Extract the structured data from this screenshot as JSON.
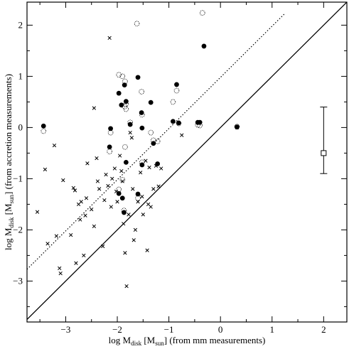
{
  "chart_data": {
    "type": "scatter",
    "xlabel": {
      "main": "log M",
      "sub": "disk",
      "bracket": " [M",
      "sub2": "sun",
      "tail": "] (from mm measurements)"
    },
    "ylabel": {
      "main": "log M",
      "sub": "disk",
      "bracket": " [M",
      "sub2": "sun",
      "tail": "] (from accretion measurements)"
    },
    "xlim": [
      -3.75,
      2.45
    ],
    "ylim": [
      -3.8,
      2.45
    ],
    "x_ticks": [
      -3,
      -2,
      -1,
      0,
      1,
      2
    ],
    "y_ticks": [
      -3,
      -2,
      -1,
      0,
      1,
      2
    ],
    "grid": false,
    "lines": [
      {
        "style": "solid",
        "x": [
          -3.75,
          2.45
        ],
        "y": [
          -3.75,
          2.45
        ]
      },
      {
        "style": "dotted",
        "x": [
          -3.75,
          1.25
        ],
        "y": [
          -2.77,
          2.23
        ]
      }
    ],
    "series": [
      {
        "marker": "filled-circle",
        "points": [
          [
            -3.43,
            0.03
          ],
          [
            -2.13,
            -0.02
          ],
          [
            -2.15,
            -0.38
          ],
          [
            -1.97,
            0.67
          ],
          [
            -1.92,
            0.44
          ],
          [
            -1.86,
            0.83
          ],
          [
            -1.83,
            0.51
          ],
          [
            -1.75,
            0.06
          ],
          [
            -1.6,
            0.98
          ],
          [
            -1.53,
            0.29
          ],
          [
            -1.52,
            -0.01
          ],
          [
            -1.35,
            0.49
          ],
          [
            -1.3,
            -0.31
          ],
          [
            -1.22,
            -0.71
          ],
          [
            -0.92,
            0.12
          ],
          [
            -0.85,
            0.84
          ],
          [
            -0.81,
            0.09
          ],
          [
            -0.44,
            0.1
          ],
          [
            -0.4,
            0.1
          ],
          [
            -0.32,
            1.59
          ],
          [
            0.32,
            0.01
          ],
          [
            -1.97,
            -1.29
          ],
          [
            -1.9,
            -1.38
          ],
          [
            -1.87,
            -1.66
          ],
          [
            -1.6,
            -1.3
          ],
          [
            -1.52,
            -0.73
          ],
          [
            -1.83,
            -0.68
          ]
        ]
      },
      {
        "marker": "dotted-circle",
        "points": [
          [
            -3.43,
            -0.07
          ],
          [
            -2.13,
            -0.1
          ],
          [
            -2.15,
            -0.47
          ],
          [
            -1.97,
            1.03
          ],
          [
            -1.9,
            1.0
          ],
          [
            -1.86,
            0.41
          ],
          [
            -1.83,
            0.46
          ],
          [
            -1.75,
            0.1
          ],
          [
            -1.62,
            2.03
          ],
          [
            -1.53,
            0.7
          ],
          [
            -1.52,
            0.25
          ],
          [
            -1.35,
            -0.1
          ],
          [
            -1.3,
            -0.25
          ],
          [
            -1.22,
            -0.27
          ],
          [
            -0.92,
            0.5
          ],
          [
            -0.85,
            0.72
          ],
          [
            -0.81,
            0.08
          ],
          [
            -0.44,
            0.05
          ],
          [
            -0.4,
            0.04
          ],
          [
            -0.35,
            2.24
          ],
          [
            0.32,
            0.02
          ],
          [
            -1.97,
            -1.21
          ],
          [
            -1.9,
            -1.02
          ],
          [
            -1.87,
            -1.62
          ],
          [
            -1.6,
            -1.38
          ],
          [
            -1.52,
            -0.68
          ],
          [
            -1.85,
            -0.38
          ],
          [
            -1.83,
            0.36
          ],
          [
            -1.85,
            0.9
          ]
        ]
      },
      {
        "marker": "cross",
        "points": [
          [
            -3.55,
            -1.65
          ],
          [
            -3.4,
            -0.82
          ],
          [
            -3.35,
            -2.27
          ],
          [
            -3.22,
            -0.35
          ],
          [
            -3.18,
            -2.12
          ],
          [
            -3.12,
            -2.75
          ],
          [
            -3.1,
            -2.85
          ],
          [
            -3.05,
            -1.03
          ],
          [
            -2.9,
            -2.1
          ],
          [
            -2.85,
            -1.18
          ],
          [
            -2.82,
            -1.23
          ],
          [
            -2.8,
            -2.65
          ],
          [
            -2.75,
            -1.5
          ],
          [
            -2.72,
            -1.8
          ],
          [
            -2.7,
            -1.45
          ],
          [
            -2.65,
            -2.5
          ],
          [
            -2.62,
            -1.72
          ],
          [
            -2.6,
            -1.38
          ],
          [
            -2.58,
            -0.7
          ],
          [
            -2.5,
            -1.6
          ],
          [
            -2.45,
            -1.93
          ],
          [
            -2.4,
            -0.6
          ],
          [
            -2.38,
            -1.05
          ],
          [
            -2.35,
            -1.2
          ],
          [
            -2.28,
            -2.32
          ],
          [
            -2.25,
            -1.42
          ],
          [
            -2.22,
            -0.92
          ],
          [
            -2.18,
            -1.14
          ],
          [
            -2.15,
            1.75
          ],
          [
            -2.12,
            -1.55
          ],
          [
            -2.1,
            -1.0
          ],
          [
            -2.05,
            -0.8
          ],
          [
            -2.02,
            -1.25
          ],
          [
            -2.0,
            -1.45
          ],
          [
            -1.95,
            -0.55
          ],
          [
            -1.92,
            -0.85
          ],
          [
            -1.9,
            -1.05
          ],
          [
            -1.88,
            -1.88
          ],
          [
            -1.85,
            -2.45
          ],
          [
            -1.82,
            -3.1
          ],
          [
            -1.78,
            -1.7
          ],
          [
            -1.75,
            -0.1
          ],
          [
            -1.72,
            -0.2
          ],
          [
            -1.7,
            -1.2
          ],
          [
            -1.68,
            -2.2
          ],
          [
            -1.65,
            -2.0
          ],
          [
            -1.6,
            -1.45
          ],
          [
            -1.55,
            -0.88
          ],
          [
            -1.52,
            -1.35
          ],
          [
            -1.5,
            -1.7
          ],
          [
            -1.45,
            -0.65
          ],
          [
            -1.42,
            -2.4
          ],
          [
            -1.4,
            -1.5
          ],
          [
            -1.38,
            -0.78
          ],
          [
            -1.35,
            -1.55
          ],
          [
            -1.3,
            -1.2
          ],
          [
            -1.25,
            -0.75
          ],
          [
            -1.2,
            -1.15
          ],
          [
            -1.15,
            -0.8
          ],
          [
            -0.75,
            -0.15
          ],
          [
            0.32,
            0.0
          ],
          [
            -2.45,
            0.38
          ]
        ]
      }
    ],
    "errorbar": {
      "marker": "open-square",
      "x": 2.0,
      "y": -0.5,
      "y_low": -0.9,
      "y_high": 0.4
    }
  }
}
